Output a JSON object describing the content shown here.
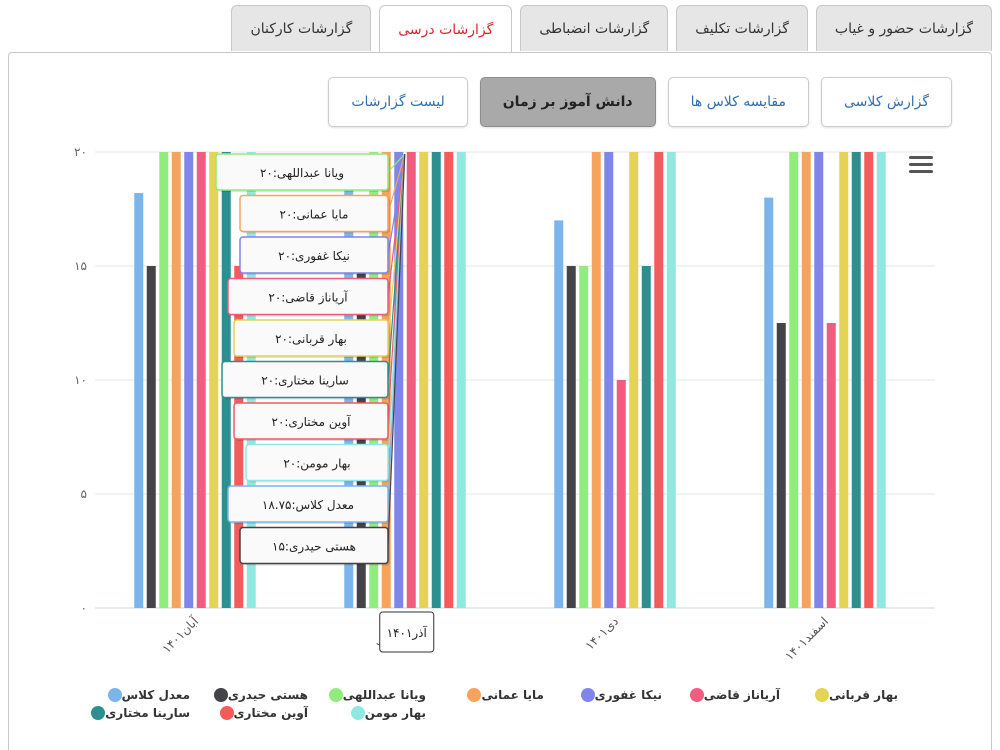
{
  "tabs": [
    {
      "label": "گزارشات کارکنان",
      "active": false
    },
    {
      "label": "گزارشات درسی",
      "active": true
    },
    {
      "label": "گزارشات انضباطی",
      "active": false
    },
    {
      "label": "گزارشات تکلیف",
      "active": false
    },
    {
      "label": "گزارشات حضور و غیاب",
      "active": false
    }
  ],
  "subtabs": [
    {
      "label": "لیست گزارشات",
      "active": false
    },
    {
      "label": "دانش آموز بر زمان",
      "active": true
    },
    {
      "label": "مقایسه کلاس ها",
      "active": false
    },
    {
      "label": "گزارش کلاسی",
      "active": false
    }
  ],
  "chart_data": {
    "type": "bar",
    "categories": [
      "آبان۱۴۰۱",
      "آذر۱۴۰۱",
      "دی۱۴۰۱",
      "اسفند۱۴۰۱"
    ],
    "ylim": [
      0,
      20
    ],
    "yticks": [
      "۰",
      "۵",
      "۱۰",
      "۱۵",
      "۲۰"
    ],
    "grid": true,
    "series": [
      {
        "name": "معدل کلاس",
        "color": "#7cb5ec",
        "values": [
          18.2,
          18.75,
          17,
          18
        ]
      },
      {
        "name": "هستی حیدری",
        "color": "#434348",
        "values": [
          15,
          15,
          15,
          12.5
        ]
      },
      {
        "name": "ویانا عبداللهی",
        "color": "#90ed7d",
        "values": [
          20,
          20,
          15,
          20
        ]
      },
      {
        "name": "مایا عمانی",
        "color": "#f7a35c",
        "values": [
          20,
          20,
          20,
          20
        ]
      },
      {
        "name": "نیکا غفوری",
        "color": "#8085e9",
        "values": [
          20,
          20,
          20,
          20
        ]
      },
      {
        "name": "آریاناز قاضی",
        "color": "#f15c80",
        "values": [
          20,
          20,
          10,
          12.5
        ]
      },
      {
        "name": "بهار قربانی",
        "color": "#e4d354",
        "values": [
          20,
          20,
          20,
          20
        ]
      },
      {
        "name": "سارینا مختاری",
        "color": "#2b908f",
        "values": [
          20,
          20,
          15,
          20
        ]
      },
      {
        "name": "آوین مختاری",
        "color": "#f45b5b",
        "values": [
          15,
          20,
          20,
          20
        ]
      },
      {
        "name": "بهار مومن",
        "color": "#91e8e1",
        "values": [
          20,
          20,
          20,
          20
        ]
      }
    ],
    "tooltip": {
      "category": "آذر۱۴۰۱",
      "category_label": "۱۴۰۱آذر",
      "entries": [
        {
          "text": "ویانا عبداللهی:۲۰",
          "color": "#90ed7d"
        },
        {
          "text": "مایا عمانی:۲۰",
          "color": "#f7a35c"
        },
        {
          "text": "نیکا غفوری:۲۰",
          "color": "#8085e9"
        },
        {
          "text": "آریاناز قاضی:۲۰",
          "color": "#f15c80"
        },
        {
          "text": "بهار قربانی:۲۰",
          "color": "#e4d354"
        },
        {
          "text": "سارینا مختاری:۲۰",
          "color": "#2b908f"
        },
        {
          "text": "آوین مختاری:۲۰",
          "color": "#f45b5b"
        },
        {
          "text": "بهار مومن:۲۰",
          "color": "#91e8e1"
        },
        {
          "text": "معدل کلاس:۱۸.۷۵",
          "color": "#7cb5ec"
        },
        {
          "text": "هستی حیدری:۱۵",
          "color": "#434348"
        }
      ]
    }
  }
}
